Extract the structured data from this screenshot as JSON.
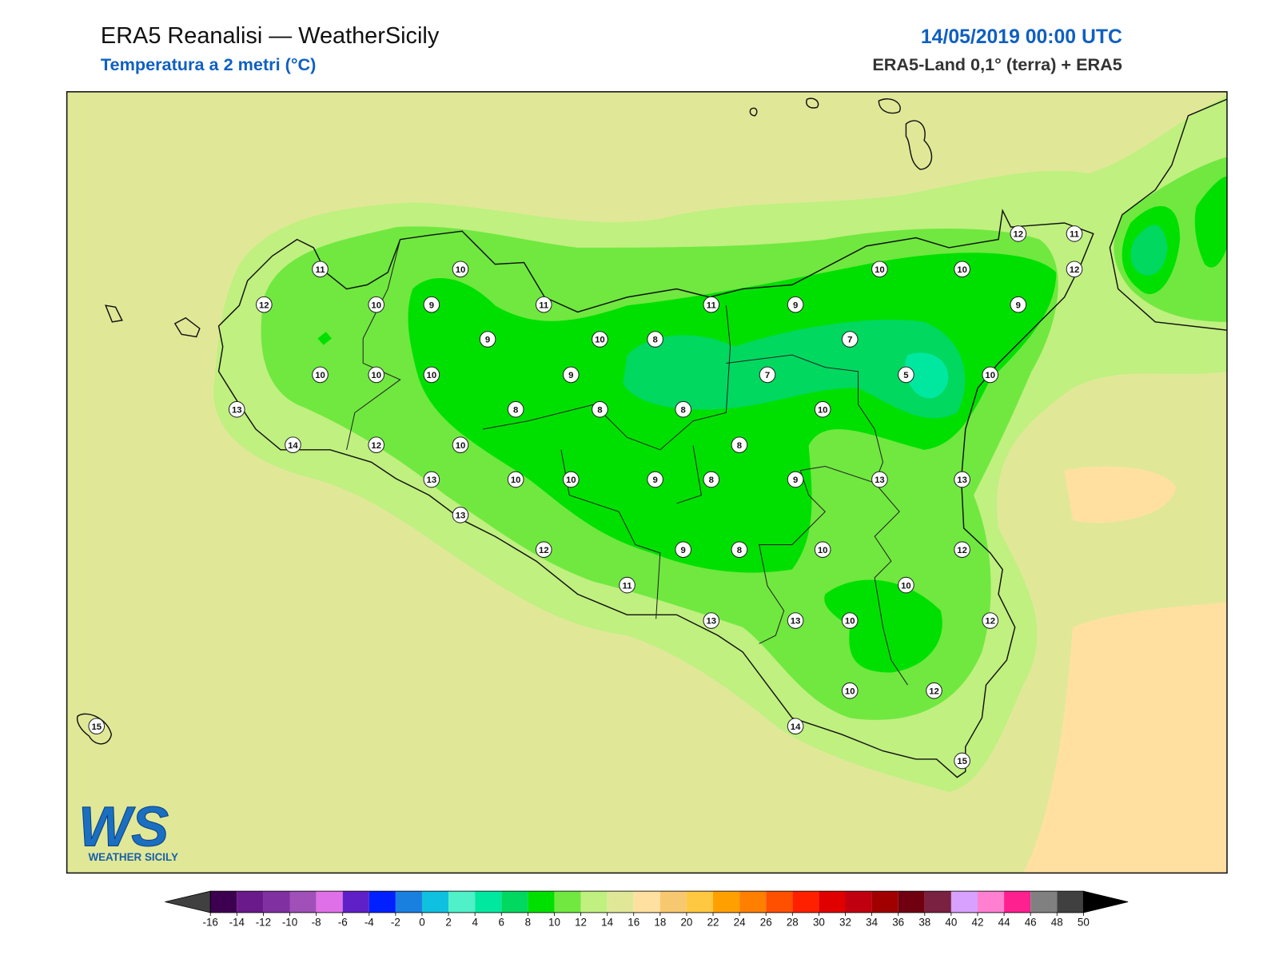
{
  "header": {
    "title": "ERA5 Reanalisi — WeatherSicily",
    "subtitle": "Temperatura a 2 metri (°C)",
    "date": "14/05/2019 00:00 UTC",
    "source": "ERA5-Land 0,1° (terra) + ERA5"
  },
  "map": {
    "stations": [
      11,
      10,
      12,
      10,
      9,
      11,
      11,
      9,
      10,
      10,
      12,
      11,
      12,
      9,
      9,
      10,
      8,
      7,
      10,
      10,
      10,
      9,
      7,
      5,
      10,
      13,
      8,
      8,
      8,
      10,
      14,
      12,
      10,
      8,
      13,
      10,
      10,
      9,
      8,
      9,
      13,
      13,
      13,
      12,
      9,
      8,
      10,
      12,
      11,
      10,
      13,
      13,
      10,
      12,
      10,
      12,
      14,
      15,
      15
    ]
  },
  "colorbar": {
    "ticks": [
      -16,
      -14,
      -12,
      -10,
      -8,
      -6,
      -4,
      -2,
      0,
      2,
      4,
      6,
      8,
      10,
      12,
      14,
      16,
      18,
      20,
      22,
      24,
      26,
      28,
      30,
      32,
      34,
      36,
      38,
      40,
      42,
      44,
      46,
      48,
      50
    ],
    "colors": [
      "#3d0050",
      "#6a1a8a",
      "#8030a0",
      "#a050b8",
      "#e070e8",
      "#6020c8",
      "#0020ff",
      "#1a80e0",
      "#10c0e0",
      "#50f0c8",
      "#00e8a0",
      "#00d860",
      "#00e000",
      "#70e840",
      "#c0f080",
      "#e0e898",
      "#ffe0a0",
      "#f8c870",
      "#ffc840",
      "#ffa000",
      "#ff8000",
      "#ff5000",
      "#ff2000",
      "#e00000",
      "#c00010",
      "#a00000",
      "#700010",
      "#7a2040",
      "#d8a0ff",
      "#ff80d0",
      "#ff2090",
      "#808080",
      "#404040"
    ],
    "under_color": "#404040",
    "over_color": "#000000"
  },
  "logo": {
    "mark": "WS",
    "name": "WEATHER SICILY"
  }
}
